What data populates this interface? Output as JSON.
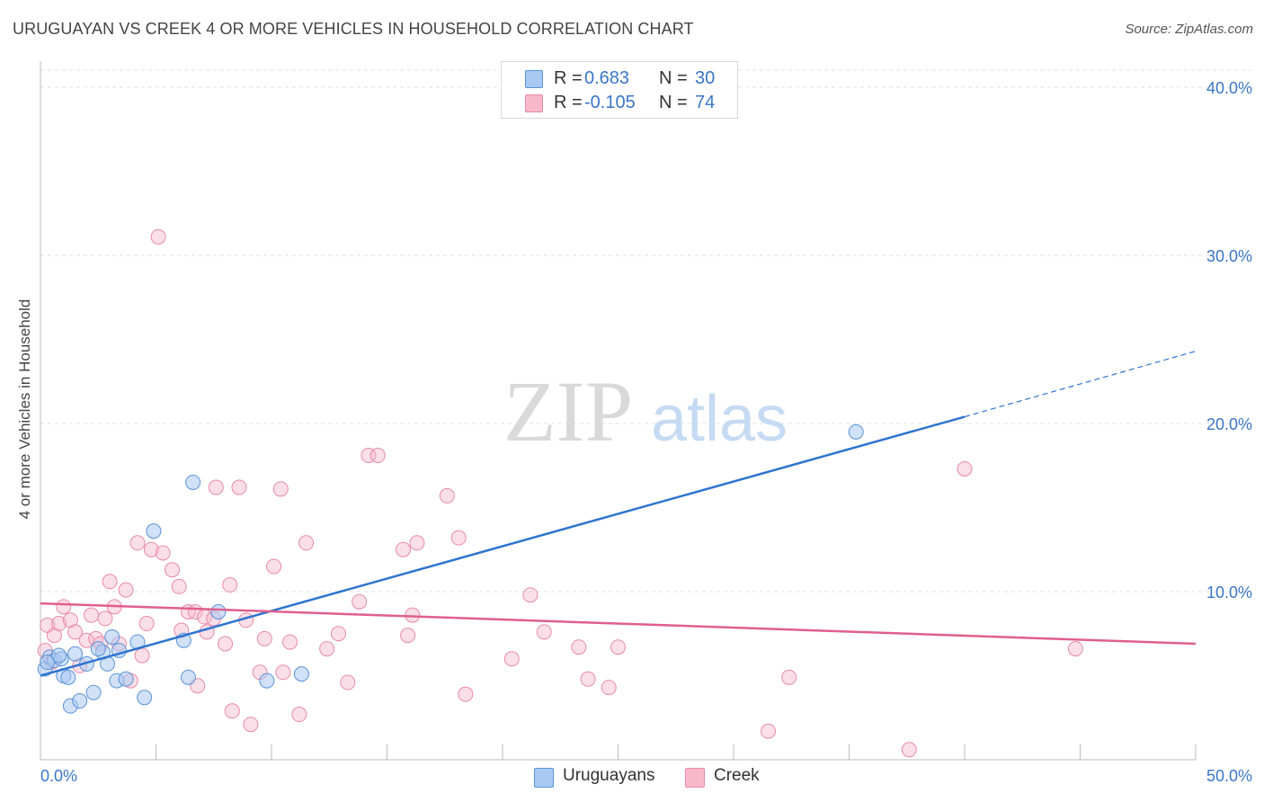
{
  "header": {
    "title": "URUGUAYAN VS CREEK 4 OR MORE VEHICLES IN HOUSEHOLD CORRELATION CHART",
    "source": "Source: ZipAtlas.com"
  },
  "watermark": {
    "zip": "ZIP",
    "atlas": "atlas"
  },
  "legend_top": {
    "rows": [
      {
        "r_label": "R =",
        "r_value": "0.683",
        "n_label": "N =",
        "n_value": "30",
        "color": "#a9c9f2"
      },
      {
        "r_label": "R =",
        "r_value": "-0.105",
        "n_label": "N =",
        "n_value": "74",
        "color": "#f7b8cb"
      }
    ]
  },
  "legend_bottom": {
    "items": [
      {
        "label": "Uruguayans",
        "color": "#a9c9f2"
      },
      {
        "label": "Creek",
        "color": "#f7b8cb"
      }
    ]
  },
  "colors": {
    "blue_fill": "#a9c9f2",
    "blue_stroke": "#5b93d6",
    "blue_line": "#2f74d0",
    "pink_fill": "#f7b8cb",
    "pink_stroke": "#e88aa6",
    "pink_line": "#e05f8e",
    "tick_label": "#3a76c8",
    "grid": "#e2e2e2"
  },
  "chart_data": {
    "type": "scatter",
    "title": "URUGUAYAN VS CREEK 4 OR MORE VEHICLES IN HOUSEHOLD CORRELATION CHART",
    "xlabel": "",
    "ylabel": "4 or more Vehicles in Household",
    "xlim": [
      0,
      50
    ],
    "ylim": [
      0,
      40
    ],
    "x_tick_labels": [
      "0.0%",
      "50.0%"
    ],
    "y_ticks": [
      10,
      20,
      30,
      40
    ],
    "y_tick_labels": [
      "10.0%",
      "20.0%",
      "30.0%",
      "40.0%"
    ],
    "grid": true,
    "legend_position": "top-center",
    "series": [
      {
        "name": "Uruguayans",
        "r": 0.683,
        "n": 30,
        "trend": {
          "x0": 0,
          "y0": 5.0,
          "x1": 40,
          "y1": 20.4,
          "dashed_to_x": 50,
          "dashed_to_y": 24.3
        },
        "points": [
          [
            0.2,
            5.4
          ],
          [
            0.4,
            6.1
          ],
          [
            0.6,
            5.9
          ],
          [
            0.9,
            6.0
          ],
          [
            1.0,
            5.0
          ],
          [
            1.2,
            4.9
          ],
          [
            1.3,
            3.2
          ],
          [
            1.5,
            6.3
          ],
          [
            1.7,
            3.5
          ],
          [
            2.0,
            5.7
          ],
          [
            2.3,
            4.0
          ],
          [
            2.7,
            6.4
          ],
          [
            2.9,
            5.7
          ],
          [
            3.1,
            7.3
          ],
          [
            3.3,
            4.7
          ],
          [
            3.4,
            6.5
          ],
          [
            3.7,
            4.8
          ],
          [
            4.2,
            7.0
          ],
          [
            4.5,
            3.7
          ],
          [
            4.9,
            13.6
          ],
          [
            6.2,
            7.1
          ],
          [
            6.4,
            4.9
          ],
          [
            6.6,
            16.5
          ],
          [
            7.7,
            8.8
          ],
          [
            9.8,
            4.7
          ],
          [
            11.3,
            5.1
          ],
          [
            35.3,
            19.5
          ],
          [
            0.3,
            5.8
          ],
          [
            0.8,
            6.2
          ],
          [
            2.5,
            6.6
          ]
        ]
      },
      {
        "name": "Creek",
        "r": -0.105,
        "n": 74,
        "trend": {
          "x0": 0,
          "y0": 9.3,
          "x1": 50,
          "y1": 6.9
        },
        "points": [
          [
            0.2,
            6.5
          ],
          [
            0.3,
            8.0
          ],
          [
            0.5,
            5.8
          ],
          [
            0.6,
            7.4
          ],
          [
            0.8,
            8.1
          ],
          [
            1.0,
            9.1
          ],
          [
            1.3,
            8.3
          ],
          [
            1.5,
            7.6
          ],
          [
            1.7,
            5.6
          ],
          [
            2.0,
            7.1
          ],
          [
            2.2,
            8.6
          ],
          [
            2.4,
            7.2
          ],
          [
            2.6,
            6.9
          ],
          [
            2.8,
            8.4
          ],
          [
            3.0,
            10.6
          ],
          [
            3.2,
            9.1
          ],
          [
            3.4,
            6.9
          ],
          [
            3.7,
            10.1
          ],
          [
            3.9,
            4.7
          ],
          [
            4.2,
            12.9
          ],
          [
            4.4,
            6.2
          ],
          [
            4.6,
            8.1
          ],
          [
            4.8,
            12.5
          ],
          [
            5.1,
            31.1
          ],
          [
            5.3,
            12.3
          ],
          [
            5.7,
            11.3
          ],
          [
            6.0,
            10.3
          ],
          [
            6.1,
            7.7
          ],
          [
            6.4,
            8.8
          ],
          [
            6.7,
            8.8
          ],
          [
            6.8,
            4.4
          ],
          [
            7.1,
            8.5
          ],
          [
            7.2,
            7.6
          ],
          [
            7.5,
            8.4
          ],
          [
            7.6,
            16.2
          ],
          [
            8.0,
            6.9
          ],
          [
            8.2,
            10.4
          ],
          [
            8.3,
            2.9
          ],
          [
            8.6,
            16.2
          ],
          [
            8.9,
            8.3
          ],
          [
            9.1,
            2.1
          ],
          [
            9.5,
            5.2
          ],
          [
            9.7,
            7.2
          ],
          [
            10.1,
            11.5
          ],
          [
            10.4,
            16.1
          ],
          [
            10.5,
            5.2
          ],
          [
            10.8,
            7.0
          ],
          [
            11.2,
            2.7
          ],
          [
            11.5,
            12.9
          ],
          [
            12.4,
            6.6
          ],
          [
            12.9,
            7.5
          ],
          [
            13.3,
            4.6
          ],
          [
            13.8,
            9.4
          ],
          [
            14.2,
            18.1
          ],
          [
            14.6,
            18.1
          ],
          [
            15.7,
            12.5
          ],
          [
            15.9,
            7.4
          ],
          [
            16.1,
            8.6
          ],
          [
            16.3,
            12.9
          ],
          [
            17.6,
            15.7
          ],
          [
            18.1,
            13.2
          ],
          [
            18.4,
            3.9
          ],
          [
            20.4,
            6.0
          ],
          [
            21.2,
            9.8
          ],
          [
            21.8,
            7.6
          ],
          [
            23.3,
            6.7
          ],
          [
            23.7,
            4.8
          ],
          [
            24.6,
            4.3
          ],
          [
            25.0,
            6.7
          ],
          [
            31.5,
            1.7
          ],
          [
            32.4,
            4.9
          ],
          [
            37.6,
            0.6
          ],
          [
            40.0,
            17.3
          ],
          [
            44.8,
            6.6
          ]
        ]
      }
    ]
  }
}
